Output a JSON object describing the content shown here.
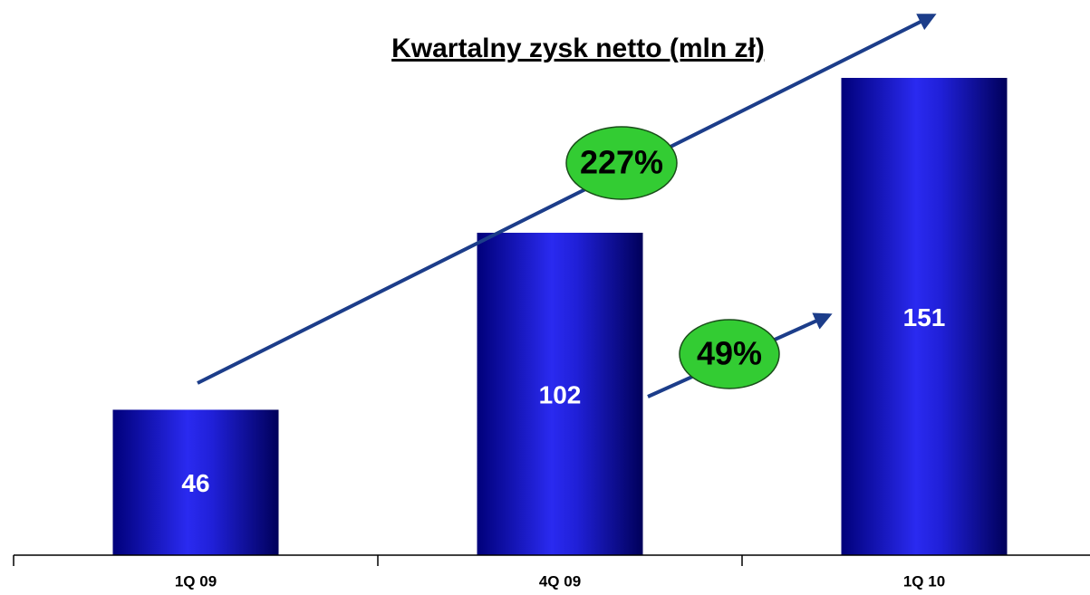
{
  "chart_data": {
    "type": "bar",
    "title": "Kwartalny zysk netto (mln zł)",
    "categories": [
      "1Q 09",
      "4Q 09",
      "1Q 10"
    ],
    "values": [
      46,
      102,
      151
    ],
    "annotations": [
      "227%",
      "49%"
    ]
  }
}
